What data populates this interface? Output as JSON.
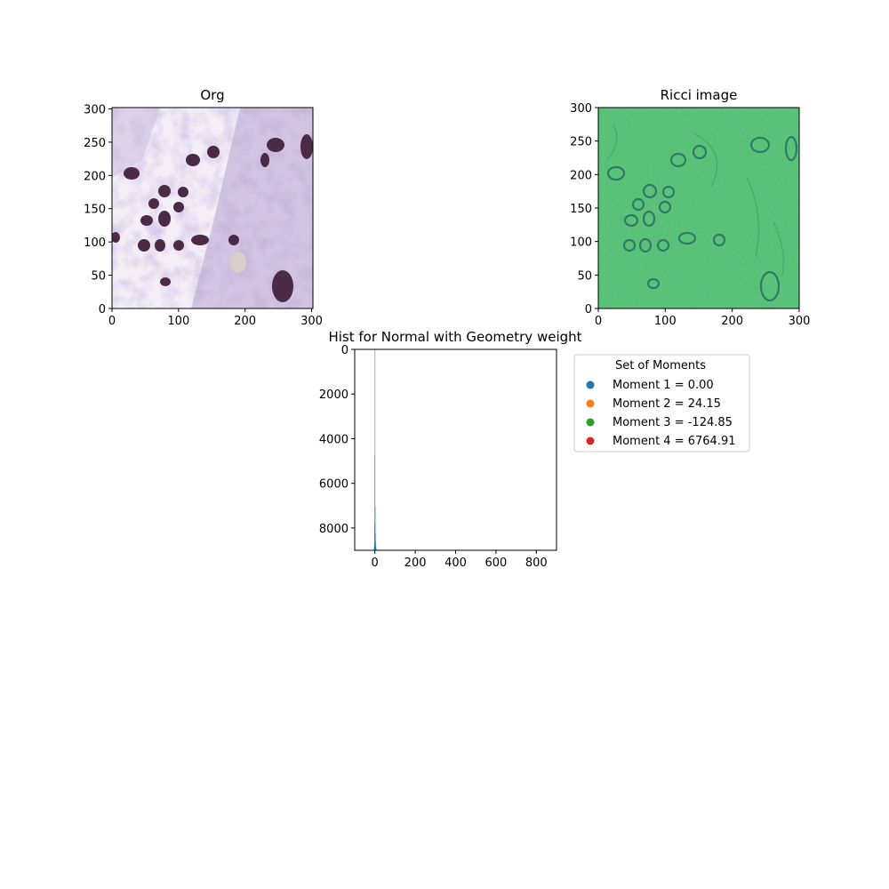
{
  "chart_data": [
    {
      "type": "image",
      "title": "Org",
      "xticks": [
        0,
        100,
        200,
        300
      ],
      "yticks": [
        0,
        50,
        100,
        150,
        200,
        250,
        300
      ],
      "xlim": [
        0,
        302
      ],
      "ylim": [
        302,
        0
      ]
    },
    {
      "type": "image",
      "title": "Ricci image",
      "xticks": [
        0,
        100,
        200,
        300
      ],
      "yticks": [
        0,
        50,
        100,
        150,
        200,
        250,
        300
      ],
      "xlim": [
        0,
        300
      ],
      "ylim": [
        300,
        0
      ]
    },
    {
      "type": "bar",
      "title": "Hist for Normal with Geometry weight",
      "xticks": [
        0,
        200,
        400,
        600,
        800
      ],
      "yticks": [
        0,
        2000,
        4000,
        6000,
        8000
      ],
      "xlim": [
        -100,
        900
      ],
      "ylim": [
        0,
        9000
      ],
      "bar_color": "#1f77b4",
      "bins": [
        {
          "x": -4,
          "count": 150
        },
        {
          "x": -3,
          "count": 350
        },
        {
          "x": -2,
          "count": 1200
        },
        {
          "x": -1,
          "count": 4250
        },
        {
          "x": 0,
          "count": 9000
        },
        {
          "x": 1,
          "count": 1950
        },
        {
          "x": 2,
          "count": 750
        },
        {
          "x": 3,
          "count": 420
        },
        {
          "x": 4,
          "count": 200
        },
        {
          "x": 5,
          "count": 120
        },
        {
          "x": 6,
          "count": 60
        }
      ],
      "legend": {
        "title": "Set of Moments",
        "placement": "right, outside",
        "entries": [
          {
            "label": "Moment 1 = 0.00",
            "color": "#1f77b4"
          },
          {
            "label": "Moment 2 = 24.15",
            "color": "#ff7f0e"
          },
          {
            "label": "Moment 3 = -124.85",
            "color": "#2ca02c"
          },
          {
            "label": "Moment 4 = 6764.91",
            "color": "#d62728"
          }
        ]
      }
    }
  ]
}
